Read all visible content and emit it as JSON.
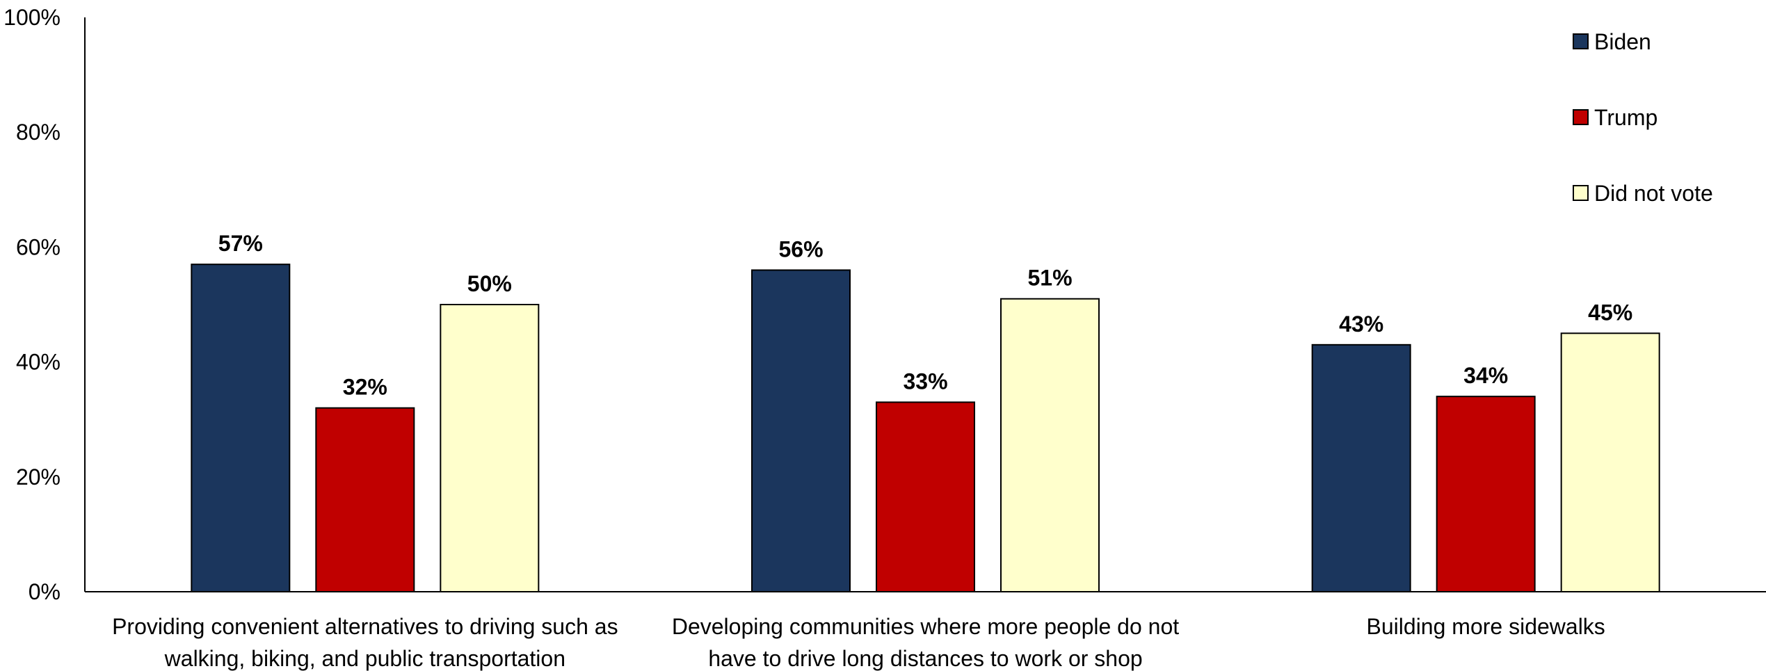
{
  "chart_data": {
    "type": "bar",
    "title": "",
    "xlabel": "",
    "ylabel": "",
    "ylim": [
      0,
      100
    ],
    "yticks": [
      "0%",
      "20%",
      "40%",
      "60%",
      "80%",
      "100%"
    ],
    "grid": false,
    "legend_position": "top-right",
    "categories": [
      [
        "Providing convenient alternatives to driving such as",
        "walking, biking, and public transportation"
      ],
      [
        "Developing communities where more people do not",
        "have to drive long distances to work or shop"
      ],
      [
        "Building more sidewalks"
      ]
    ],
    "series": [
      {
        "name": "Biden",
        "color": "#1b365d",
        "values": [
          57,
          56,
          43
        ],
        "labels": [
          "57%",
          "56%",
          "43%"
        ]
      },
      {
        "name": "Trump",
        "color": "#c00000",
        "values": [
          32,
          33,
          34
        ],
        "labels": [
          "32%",
          "33%",
          "34%"
        ]
      },
      {
        "name": "Did not vote",
        "color": "#ffffcc",
        "values": [
          50,
          51,
          45
        ],
        "labels": [
          "50%",
          "51%",
          "45%"
        ]
      }
    ]
  }
}
